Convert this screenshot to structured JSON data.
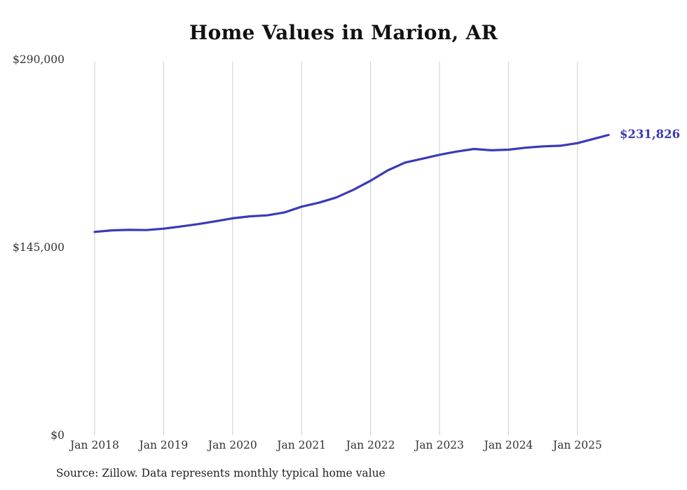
{
  "title": "Home Values in Marion, AR",
  "end_value_label": "$231,826",
  "source_note": "Source: Zillow. Data represents monthly typical home value",
  "colors": {
    "line": "#3b3ab8",
    "grid": "#cccccc",
    "tick_text": "#333333",
    "title_text": "#111111",
    "end_label": "#3b3ab8",
    "source_text": "#222222"
  },
  "chart_data": {
    "type": "line",
    "title": "Home Values in Marion, AR",
    "series_name": "Monthly typical home value",
    "x_unit": "decimal_year",
    "x": [
      2018.0,
      2018.25,
      2018.5,
      2018.75,
      2019.0,
      2019.25,
      2019.5,
      2019.75,
      2020.0,
      2020.25,
      2020.5,
      2020.75,
      2021.0,
      2021.25,
      2021.5,
      2021.75,
      2022.0,
      2022.25,
      2022.5,
      2022.75,
      2023.0,
      2023.25,
      2023.5,
      2023.75,
      2024.0,
      2024.25,
      2024.5,
      2024.75,
      2025.0,
      2025.25,
      2025.45
    ],
    "values": [
      157000,
      158200,
      158600,
      158400,
      159500,
      161200,
      163000,
      165200,
      167500,
      169000,
      169800,
      172000,
      176500,
      179500,
      183500,
      189500,
      196500,
      204500,
      210500,
      213500,
      216500,
      219000,
      221000,
      220000,
      220500,
      222000,
      223000,
      223500,
      225500,
      229000,
      231826
    ],
    "x_ticks": [
      {
        "value": 2018,
        "label": "Jan 2018"
      },
      {
        "value": 2019,
        "label": "Jan 2019"
      },
      {
        "value": 2020,
        "label": "Jan 2020"
      },
      {
        "value": 2021,
        "label": "Jan 2021"
      },
      {
        "value": 2022,
        "label": "Jan 2022"
      },
      {
        "value": 2023,
        "label": "Jan 2023"
      },
      {
        "value": 2024,
        "label": "Jan 2024"
      },
      {
        "value": 2025,
        "label": "Jan 2025"
      }
    ],
    "y_ticks": [
      {
        "value": 0,
        "label": "$0"
      },
      {
        "value": 145000,
        "label": "$145,000"
      },
      {
        "value": 290000,
        "label": "$290,000"
      }
    ],
    "ylim": [
      0,
      290000
    ],
    "xlim": [
      2017.65,
      2025.95
    ],
    "grid": "vertical-only",
    "legend": "none",
    "end_annotation": {
      "x": 2025.45,
      "value": 231826,
      "label": "$231,826"
    }
  }
}
